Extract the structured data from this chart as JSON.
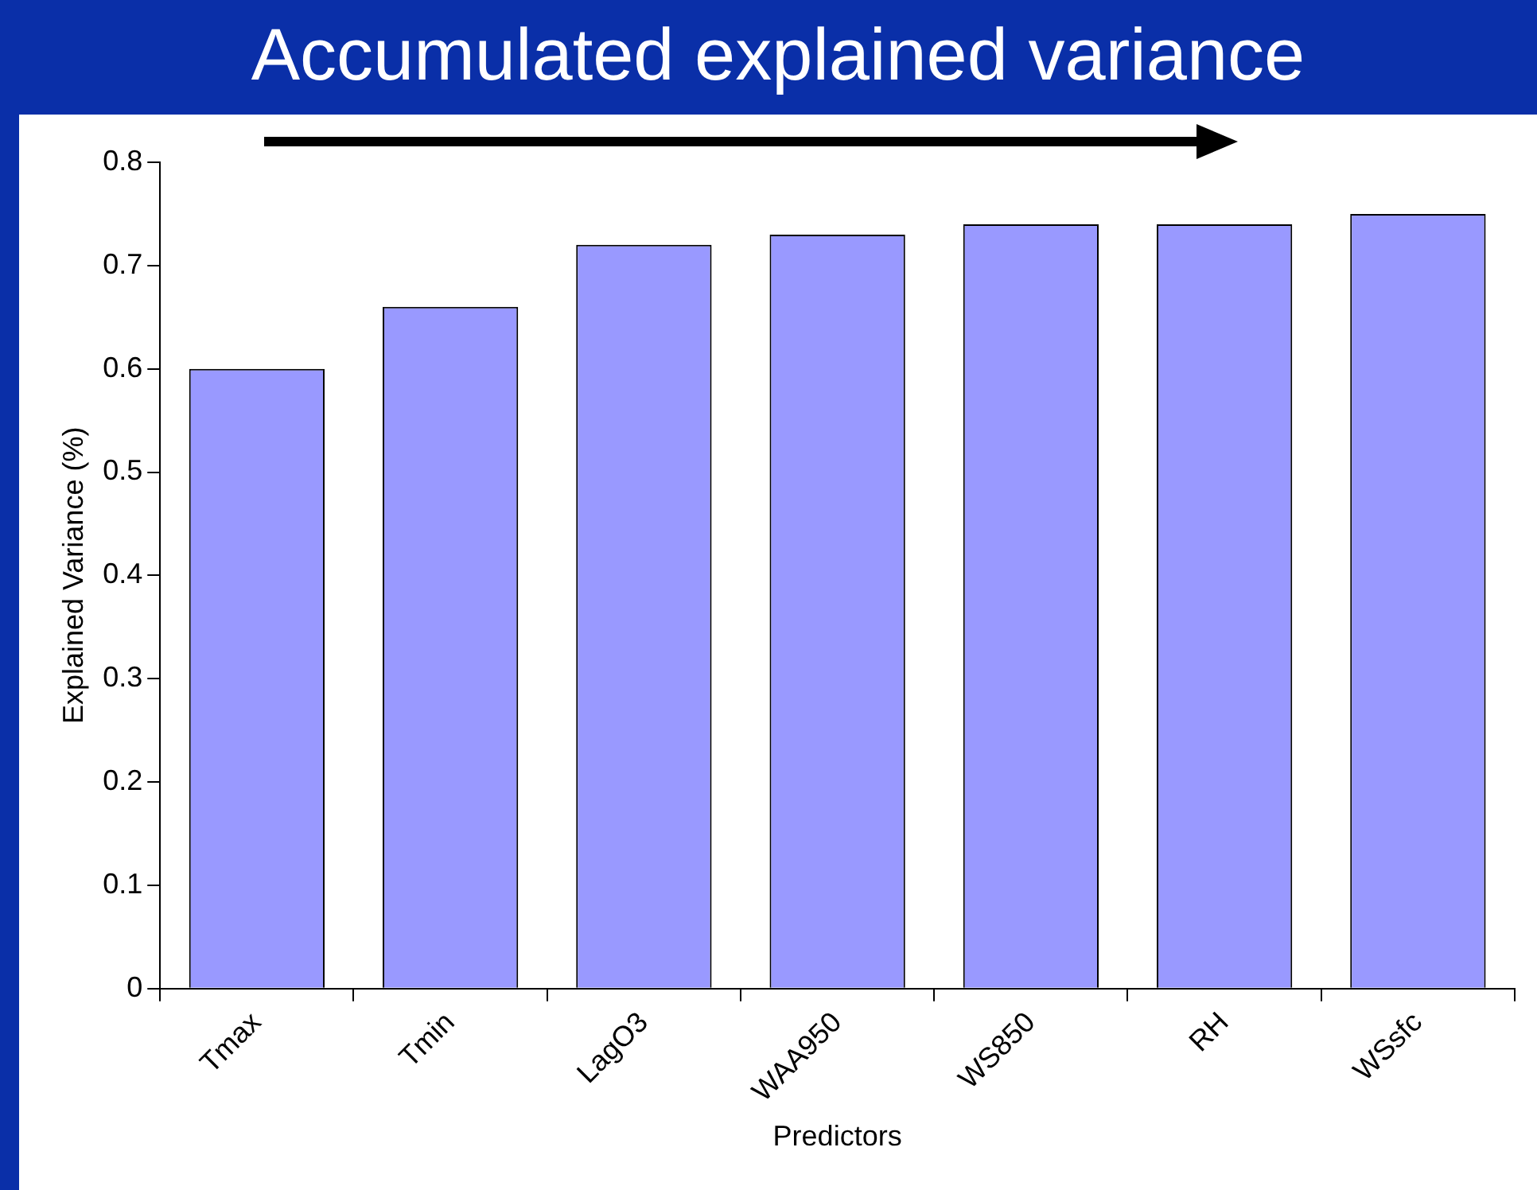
{
  "chart_data": {
    "type": "bar",
    "title": "Accumulated explained variance",
    "xlabel": "Predictors",
    "ylabel": "Explained Variance (%)",
    "categories": [
      "Tmax",
      "Tmin",
      "LagO3",
      "WAA950",
      "WS850",
      "RH",
      "WSsfc"
    ],
    "values": [
      0.6,
      0.66,
      0.72,
      0.73,
      0.74,
      0.74,
      0.75
    ],
    "color": "#9999ff",
    "ylim": [
      0,
      0.8
    ],
    "yticks": [
      0,
      0.1,
      0.2,
      0.3,
      0.4,
      0.5,
      0.6,
      0.7,
      0.8
    ],
    "grid": false,
    "legend": false
  }
}
